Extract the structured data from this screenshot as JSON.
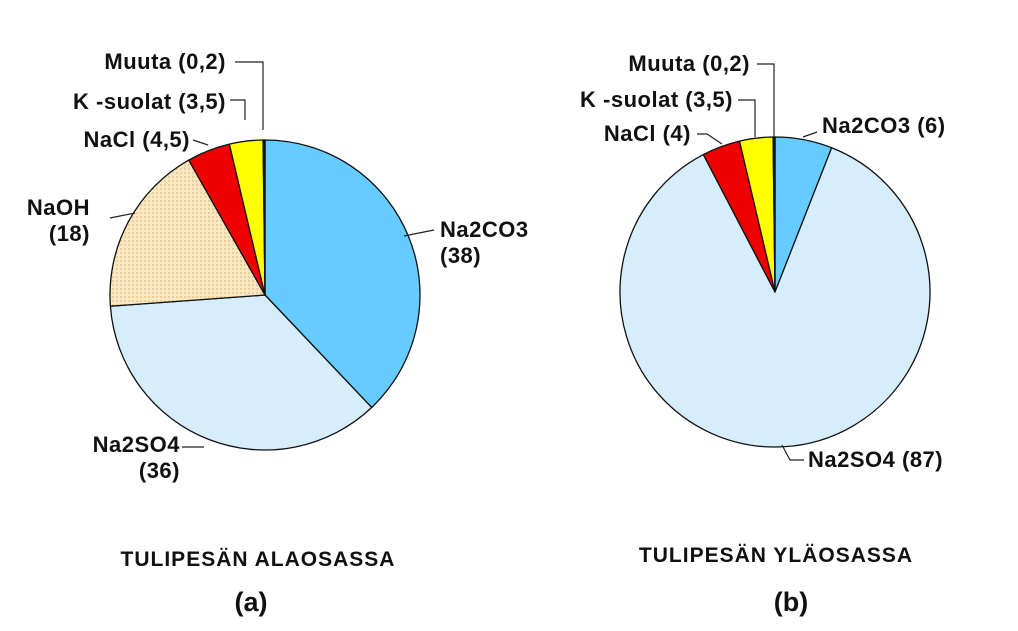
{
  "chart_data": [
    {
      "type": "pie",
      "caption": "TULIPESÄN ALAOSASSA",
      "panel": "(a)",
      "start": "top, clockwise",
      "slices": [
        {
          "name": "Na2CO3",
          "value": 38,
          "color": "#66ccff",
          "label": [
            "Na2CO3",
            "(38)"
          ]
        },
        {
          "name": "Na2SO4",
          "value": 36,
          "color": "#d6eefc",
          "label": [
            "Na2SO4",
            "(36)"
          ]
        },
        {
          "name": "NaOH",
          "value": 18,
          "color": "#fbe8c0",
          "pattern": "dotted",
          "label": [
            "NaOH",
            "(18)"
          ]
        },
        {
          "name": "NaCl",
          "value": 4.5,
          "color": "#ee0000",
          "label": [
            "NaCl (4,5)"
          ]
        },
        {
          "name": "K -suolat",
          "value": 3.5,
          "color": "#ffff00",
          "label": [
            "K -suolat (3,5)"
          ]
        },
        {
          "name": "Muuta",
          "value": 0.2,
          "color": "#111111",
          "label": [
            "Muuta (0,2)"
          ]
        }
      ]
    },
    {
      "type": "pie",
      "caption": "TULIPESÄN YLÄOSASSA",
      "panel": "(b)",
      "start": "top, clockwise",
      "slices": [
        {
          "name": "Na2CO3",
          "value": 6,
          "color": "#66ccff",
          "label": [
            "Na2CO3 (6)"
          ]
        },
        {
          "name": "Na2SO4",
          "value": 87,
          "color": "#d6eefc",
          "label": [
            "Na2SO4 (87)"
          ]
        },
        {
          "name": "NaCl",
          "value": 4,
          "color": "#ee0000",
          "label": [
            "NaCl (4)"
          ]
        },
        {
          "name": "K -suolat",
          "value": 3.5,
          "color": "#ffff00",
          "label": [
            "K -suolat (3,5)"
          ]
        },
        {
          "name": "Muuta",
          "value": 0.2,
          "color": "#111111",
          "label": [
            "Muuta (0,2)"
          ]
        }
      ]
    }
  ]
}
